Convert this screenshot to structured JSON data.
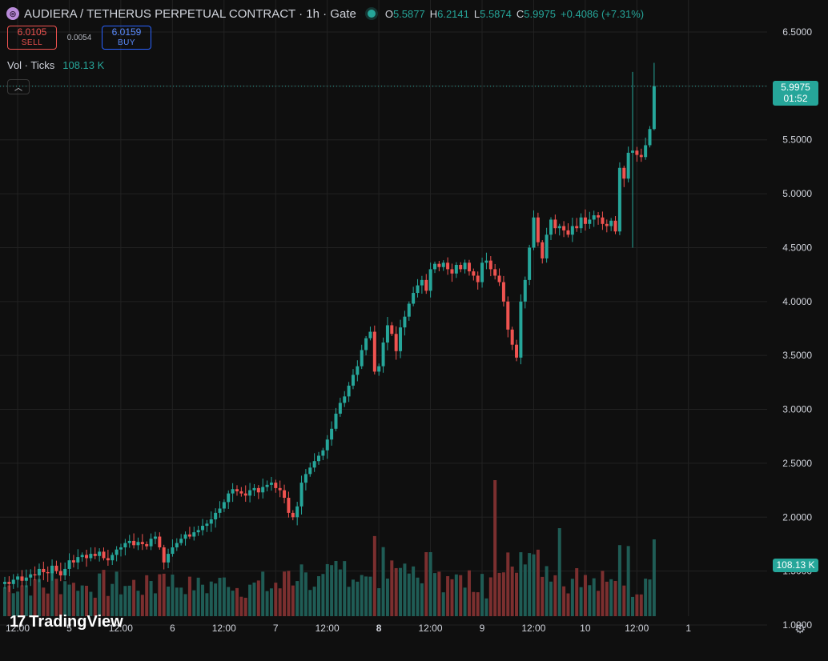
{
  "header": {
    "symbol_icon": "audiera-coin-icon",
    "title": "AUDIERA / TETHERUS PERPETUAL CONTRACT · 1h · Gate",
    "ohlc": {
      "o_label": "O",
      "o": "5.5877",
      "h_label": "H",
      "h": "6.2141",
      "l_label": "L",
      "l": "5.5874",
      "c_label": "C",
      "c": "5.9975",
      "change": "+0.4086 (+7.31%)"
    }
  },
  "trade": {
    "sell_price": "6.0105",
    "sell_label": "SELL",
    "spread": "0.0054",
    "buy_price": "6.0159",
    "buy_label": "BUY"
  },
  "volume_legend": {
    "label": "Vol · Ticks",
    "value": "108.13 K"
  },
  "price_label": {
    "price": "5.9975",
    "countdown": "01:52"
  },
  "volume_label": "108.13 K",
  "logo_text": "TradingView",
  "colors": {
    "up": "#26a69a",
    "down": "#ef5350",
    "up_vol": "#1f5c55",
    "down_vol": "#7b2f2f",
    "background": "#0f0f0f",
    "grid": "#222222"
  },
  "chart_data": {
    "type": "candlestick",
    "title": "AUDIERA / TETHERUS PERPETUAL CONTRACT · 1h · Gate",
    "y_ticks": [
      "6.5000",
      "6.0000",
      "5.5000",
      "5.0000",
      "4.5000",
      "4.0000",
      "3.5000",
      "3.0000",
      "2.5000",
      "2.0000",
      "1.5000",
      "1.0000"
    ],
    "y_tick_values": [
      6.5,
      6.0,
      5.5,
      5.0,
      4.5,
      4.0,
      3.5,
      3.0,
      2.5,
      2.0,
      1.5,
      1.0
    ],
    "ylim": [
      0.9,
      6.7
    ],
    "x_ticks": [
      {
        "label": "12:00",
        "bar": 0,
        "bold": false
      },
      {
        "label": "5",
        "bar": 12,
        "bold": false
      },
      {
        "label": "12:00",
        "bar": 24,
        "bold": false
      },
      {
        "label": "6",
        "bar": 36,
        "bold": false
      },
      {
        "label": "12:00",
        "bar": 48,
        "bold": false
      },
      {
        "label": "7",
        "bar": 60,
        "bold": false
      },
      {
        "label": "12:00",
        "bar": 72,
        "bold": false
      },
      {
        "label": "8",
        "bar": 84,
        "bold": true
      },
      {
        "label": "12:00",
        "bar": 96,
        "bold": false
      },
      {
        "label": "9",
        "bar": 108,
        "bold": false
      },
      {
        "label": "12:00",
        "bar": 120,
        "bold": false
      },
      {
        "label": "10",
        "bar": 132,
        "bold": false
      },
      {
        "label": "12:00",
        "bar": 144,
        "bold": false
      },
      {
        "label": "1",
        "bar": 156,
        "bold": false
      }
    ],
    "last_price": 5.9975,
    "close": [
      1.4,
      1.38,
      1.42,
      1.45,
      1.41,
      1.44,
      1.47,
      1.46,
      1.52,
      1.49,
      1.48,
      1.55,
      1.5,
      1.46,
      1.52,
      1.6,
      1.58,
      1.63,
      1.65,
      1.62,
      1.66,
      1.64,
      1.68,
      1.62,
      1.6,
      1.65,
      1.7,
      1.72,
      1.76,
      1.78,
      1.74,
      1.77,
      1.75,
      1.73,
      1.8,
      1.82,
      1.72,
      1.58,
      1.66,
      1.72,
      1.76,
      1.8,
      1.84,
      1.82,
      1.86,
      1.88,
      1.92,
      1.94,
      1.98,
      2.04,
      2.08,
      2.14,
      2.22,
      2.26,
      2.24,
      2.22,
      2.2,
      2.25,
      2.27,
      2.23,
      2.28,
      2.3,
      2.32,
      2.27,
      2.25,
      2.18,
      2.04,
      2.0,
      2.1,
      2.32,
      2.4,
      2.46,
      2.52,
      2.57,
      2.62,
      2.72,
      2.82,
      2.96,
      3.06,
      3.12,
      3.22,
      3.32,
      3.4,
      3.55,
      3.66,
      3.72,
      3.35,
      3.4,
      3.62,
      3.78,
      3.7,
      3.54,
      3.76,
      3.86,
      3.98,
      4.08,
      4.15,
      4.2,
      4.1,
      4.3,
      4.35,
      4.32,
      4.36,
      4.3,
      4.26,
      4.34,
      4.3,
      4.36,
      4.28,
      4.24,
      4.18,
      4.36,
      4.38,
      4.3,
      4.24,
      4.18,
      4.0,
      3.74,
      3.6,
      3.48,
      4.0,
      4.2,
      4.5,
      4.78,
      4.55,
      4.4,
      4.62,
      4.76,
      4.68,
      4.7,
      4.66,
      4.62,
      4.7,
      4.68,
      4.78,
      4.72,
      4.76,
      4.8,
      4.78,
      4.72,
      4.7,
      4.75,
      4.65,
      5.24,
      5.14,
      5.38,
      5.4,
      5.36,
      5.34,
      5.45,
      5.6,
      5.9975
    ]
  }
}
